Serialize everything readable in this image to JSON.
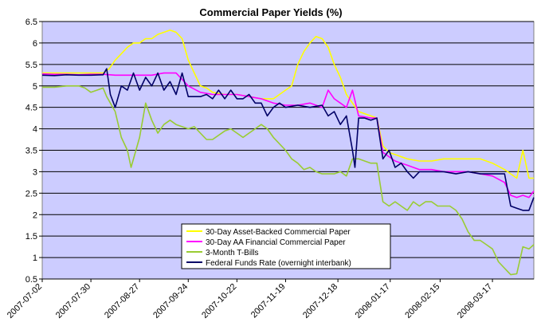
{
  "chart_data": {
    "type": "line",
    "title": "Commercial Paper Yields (%)",
    "xlabel": "",
    "ylabel": "",
    "ylim": [
      0.5,
      6.5
    ],
    "yticks": [
      "0.5",
      "1",
      "1.5",
      "2",
      "2.5",
      "3",
      "3.5",
      "4",
      "4.5",
      "5",
      "5.5",
      "6",
      "6.5"
    ],
    "xticks": [
      "2007-07-02",
      "2007-07-30",
      "2007-08-27",
      "2007-09-24",
      "2007-10-22",
      "2007-11-19",
      "2007-12-18",
      "2008-01-17",
      "2008-02-15",
      "2008-03-17"
    ],
    "x_range_weeks": [
      0,
      40.4
    ],
    "grid": "horizontal",
    "legend_position": "bottom-center",
    "series": [
      {
        "name": "30-Day Asset-Backed Commercial Paper",
        "color": "#ffff00",
        "points": [
          [
            0,
            5.3
          ],
          [
            1,
            5.3
          ],
          [
            2,
            5.3
          ],
          [
            3,
            5.3
          ],
          [
            4,
            5.3
          ],
          [
            5,
            5.3
          ],
          [
            5.5,
            5.4
          ],
          [
            6,
            5.6
          ],
          [
            6.5,
            5.75
          ],
          [
            7,
            5.9
          ],
          [
            7.5,
            6.0
          ],
          [
            8,
            6.0
          ],
          [
            8.5,
            6.1
          ],
          [
            9,
            6.1
          ],
          [
            9.5,
            6.2
          ],
          [
            10,
            6.25
          ],
          [
            10.5,
            6.3
          ],
          [
            11,
            6.25
          ],
          [
            11.5,
            6.1
          ],
          [
            12,
            5.6
          ],
          [
            12.5,
            5.3
          ],
          [
            13,
            5.0
          ],
          [
            13.5,
            4.95
          ],
          [
            14,
            4.85
          ],
          [
            15,
            4.8
          ],
          [
            16,
            4.8
          ],
          [
            17,
            4.75
          ],
          [
            18,
            4.7
          ],
          [
            19,
            4.7
          ],
          [
            19.5,
            4.8
          ],
          [
            20,
            4.9
          ],
          [
            20.5,
            5.0
          ],
          [
            21,
            5.5
          ],
          [
            21.5,
            5.8
          ],
          [
            22,
            6.0
          ],
          [
            22.5,
            6.15
          ],
          [
            23,
            6.1
          ],
          [
            23.5,
            5.9
          ],
          [
            24,
            5.5
          ],
          [
            24.5,
            5.2
          ],
          [
            25,
            4.8
          ],
          [
            25.5,
            4.6
          ],
          [
            26,
            4.4
          ],
          [
            27,
            4.3
          ],
          [
            27.5,
            4.25
          ],
          [
            28,
            3.6
          ],
          [
            28.5,
            3.45
          ],
          [
            29,
            3.4
          ],
          [
            30,
            3.3
          ],
          [
            31,
            3.25
          ],
          [
            32,
            3.25
          ],
          [
            33,
            3.3
          ],
          [
            34,
            3.3
          ],
          [
            35,
            3.3
          ],
          [
            36,
            3.3
          ],
          [
            37,
            3.2
          ],
          [
            38,
            3.05
          ],
          [
            38.5,
            2.95
          ],
          [
            39,
            2.85
          ],
          [
            39.5,
            3.5
          ],
          [
            40,
            2.85
          ],
          [
            40.4,
            2.85
          ]
        ]
      },
      {
        "name": "30-Day AA Financial Commercial Paper",
        "color": "#ff00ff",
        "points": [
          [
            0,
            5.28
          ],
          [
            1,
            5.27
          ],
          [
            2,
            5.27
          ],
          [
            3,
            5.26
          ],
          [
            4,
            5.27
          ],
          [
            5,
            5.27
          ],
          [
            6,
            5.25
          ],
          [
            7,
            5.25
          ],
          [
            8,
            5.25
          ],
          [
            9,
            5.25
          ],
          [
            10,
            5.3
          ],
          [
            11,
            5.3
          ],
          [
            12,
            5.0
          ],
          [
            13,
            4.85
          ],
          [
            14,
            4.8
          ],
          [
            15,
            4.8
          ],
          [
            16,
            4.8
          ],
          [
            17,
            4.75
          ],
          [
            18,
            4.7
          ],
          [
            19,
            4.6
          ],
          [
            20,
            4.55
          ],
          [
            21,
            4.55
          ],
          [
            22,
            4.6
          ],
          [
            23,
            4.5
          ],
          [
            23.5,
            4.9
          ],
          [
            24,
            4.7
          ],
          [
            24.5,
            4.6
          ],
          [
            25,
            4.5
          ],
          [
            25.5,
            4.9
          ],
          [
            26,
            4.3
          ],
          [
            27,
            4.25
          ],
          [
            27.5,
            4.25
          ],
          [
            28,
            3.45
          ],
          [
            28.5,
            3.35
          ],
          [
            29,
            3.25
          ],
          [
            30,
            3.15
          ],
          [
            31,
            3.05
          ],
          [
            32,
            3.05
          ],
          [
            33,
            3.0
          ],
          [
            34,
            3.0
          ],
          [
            35,
            3.0
          ],
          [
            36,
            2.95
          ],
          [
            37,
            2.9
          ],
          [
            38,
            2.75
          ],
          [
            38.5,
            2.45
          ],
          [
            39,
            2.4
          ],
          [
            39.5,
            2.45
          ],
          [
            40,
            2.4
          ],
          [
            40.4,
            2.55
          ]
        ]
      },
      {
        "name": "3-Month T-Bills",
        "color": "#99cc33",
        "points": [
          [
            0,
            4.97
          ],
          [
            1,
            4.97
          ],
          [
            2,
            5.0
          ],
          [
            3,
            5.0
          ],
          [
            3.5,
            4.95
          ],
          [
            4,
            4.85
          ],
          [
            4.5,
            4.9
          ],
          [
            5,
            4.95
          ],
          [
            5.3,
            4.75
          ],
          [
            5.6,
            4.6
          ],
          [
            6,
            4.4
          ],
          [
            6.5,
            3.8
          ],
          [
            7,
            3.5
          ],
          [
            7.3,
            3.1
          ],
          [
            7.6,
            3.4
          ],
          [
            8,
            3.8
          ],
          [
            8.5,
            4.6
          ],
          [
            9,
            4.2
          ],
          [
            9.5,
            3.9
          ],
          [
            10,
            4.1
          ],
          [
            10.5,
            4.2
          ],
          [
            11,
            4.1
          ],
          [
            12,
            4.0
          ],
          [
            12.5,
            4.05
          ],
          [
            13,
            3.9
          ],
          [
            13.5,
            3.75
          ],
          [
            14,
            3.75
          ],
          [
            15,
            3.95
          ],
          [
            15.5,
            4.0
          ],
          [
            16,
            3.9
          ],
          [
            16.5,
            3.8
          ],
          [
            17,
            3.9
          ],
          [
            17.5,
            4.0
          ],
          [
            18,
            4.1
          ],
          [
            18.5,
            4.0
          ],
          [
            19,
            3.8
          ],
          [
            20,
            3.5
          ],
          [
            20.5,
            3.3
          ],
          [
            21,
            3.2
          ],
          [
            21.5,
            3.05
          ],
          [
            22,
            3.1
          ],
          [
            22.5,
            3.0
          ],
          [
            23,
            2.95
          ],
          [
            24,
            2.95
          ],
          [
            24.5,
            3.0
          ],
          [
            25,
            2.9
          ],
          [
            25.5,
            3.3
          ],
          [
            26,
            3.3
          ],
          [
            26.5,
            3.25
          ],
          [
            27,
            3.2
          ],
          [
            27.5,
            3.2
          ],
          [
            28,
            2.3
          ],
          [
            28.5,
            2.2
          ],
          [
            29,
            2.3
          ],
          [
            29.5,
            2.2
          ],
          [
            30,
            2.1
          ],
          [
            30.5,
            2.3
          ],
          [
            31,
            2.2
          ],
          [
            31.5,
            2.3
          ],
          [
            32,
            2.3
          ],
          [
            32.5,
            2.2
          ],
          [
            33,
            2.2
          ],
          [
            33.5,
            2.2
          ],
          [
            34,
            2.1
          ],
          [
            34.5,
            1.9
          ],
          [
            35,
            1.6
          ],
          [
            35.5,
            1.4
          ],
          [
            36,
            1.4
          ],
          [
            36.5,
            1.3
          ],
          [
            37,
            1.2
          ],
          [
            37.5,
            0.9
          ],
          [
            38,
            0.75
          ],
          [
            38.5,
            0.6
          ],
          [
            39,
            0.62
          ],
          [
            39.5,
            1.25
          ],
          [
            40,
            1.2
          ],
          [
            40.4,
            1.3
          ]
        ]
      },
      {
        "name": "Federal Funds Rate (overnight interbank)",
        "color": "#000066",
        "points": [
          [
            0,
            5.25
          ],
          [
            1,
            5.24
          ],
          [
            2,
            5.26
          ],
          [
            3,
            5.25
          ],
          [
            4,
            5.25
          ],
          [
            5,
            5.26
          ],
          [
            5.3,
            5.4
          ],
          [
            5.6,
            4.8
          ],
          [
            6,
            4.5
          ],
          [
            6.5,
            5.0
          ],
          [
            7,
            4.9
          ],
          [
            7.5,
            5.3
          ],
          [
            8,
            4.9
          ],
          [
            8.5,
            5.2
          ],
          [
            9,
            5.0
          ],
          [
            9.5,
            5.3
          ],
          [
            10,
            4.9
          ],
          [
            10.5,
            5.1
          ],
          [
            11,
            4.8
          ],
          [
            11.5,
            5.3
          ],
          [
            12,
            4.75
          ],
          [
            13,
            4.75
          ],
          [
            13.5,
            4.8
          ],
          [
            14,
            4.7
          ],
          [
            14.5,
            4.9
          ],
          [
            15,
            4.7
          ],
          [
            15.5,
            4.9
          ],
          [
            16,
            4.7
          ],
          [
            16.5,
            4.7
          ],
          [
            17,
            4.8
          ],
          [
            17.5,
            4.6
          ],
          [
            18,
            4.6
          ],
          [
            18.5,
            4.3
          ],
          [
            19,
            4.5
          ],
          [
            19.5,
            4.6
          ],
          [
            20,
            4.5
          ],
          [
            21,
            4.55
          ],
          [
            22,
            4.5
          ],
          [
            23,
            4.55
          ],
          [
            23.5,
            4.3
          ],
          [
            24,
            4.4
          ],
          [
            24.5,
            4.1
          ],
          [
            25,
            4.3
          ],
          [
            25.5,
            3.5
          ],
          [
            25.7,
            3.1
          ],
          [
            26,
            4.25
          ],
          [
            26.5,
            4.25
          ],
          [
            27,
            4.2
          ],
          [
            27.5,
            4.25
          ],
          [
            28,
            3.3
          ],
          [
            28.5,
            3.5
          ],
          [
            29,
            3.1
          ],
          [
            29.5,
            3.2
          ],
          [
            30,
            3.0
          ],
          [
            30.5,
            2.85
          ],
          [
            31,
            3.0
          ],
          [
            32,
            3.0
          ],
          [
            33,
            3.0
          ],
          [
            34,
            2.95
          ],
          [
            35,
            3.0
          ],
          [
            36,
            2.95
          ],
          [
            37,
            2.95
          ],
          [
            38,
            2.95
          ],
          [
            38.5,
            2.2
          ],
          [
            39,
            2.15
          ],
          [
            39.5,
            2.1
          ],
          [
            40,
            2.1
          ],
          [
            40.4,
            2.4
          ]
        ]
      }
    ]
  }
}
